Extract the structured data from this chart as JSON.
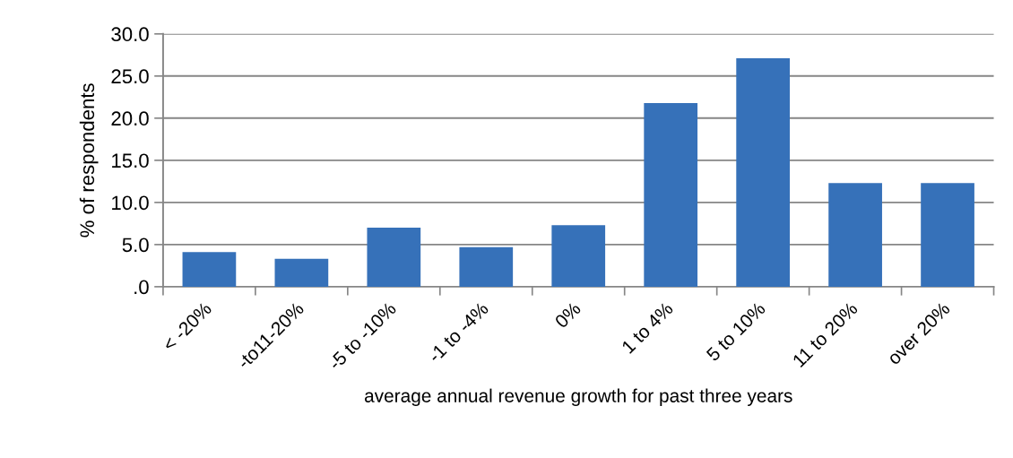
{
  "chart_data": {
    "type": "bar",
    "categories": [
      "< -20%",
      "-to11-20%",
      "-5 to -10%",
      "-1 to -4%",
      "0%",
      "1 to 4%",
      "5 to 10%",
      "11 to 20%",
      "over 20%"
    ],
    "values": [
      4.1,
      3.3,
      7.0,
      4.7,
      7.3,
      21.8,
      27.1,
      12.3,
      12.3
    ],
    "color": "#3671b9",
    "xlabel": "average annual revenue growth for past three years",
    "ylabel": "% of respondents",
    "ylim": [
      0,
      30
    ],
    "yticks": [
      {
        "value": 0,
        "label": ".0"
      },
      {
        "value": 5,
        "label": "5.0"
      },
      {
        "value": 10,
        "label": "10.0"
      },
      {
        "value": 15,
        "label": "15.0"
      },
      {
        "value": 20,
        "label": "20.0"
      },
      {
        "value": 25,
        "label": "25.0"
      },
      {
        "value": 30,
        "label": "30.0"
      }
    ],
    "grid": "y"
  }
}
